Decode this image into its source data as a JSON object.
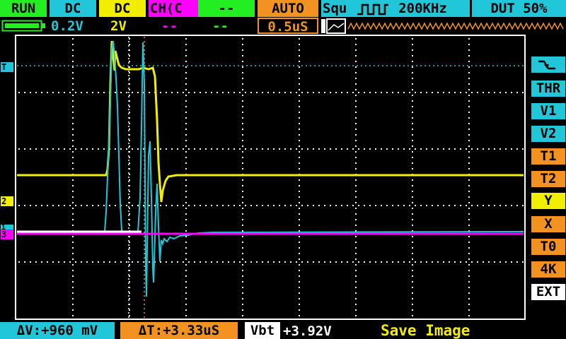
{
  "top_bar": {
    "run_state": "RUN",
    "ch1_coupling": "DC",
    "ch2_coupling": "DC",
    "ch_mode": "CH(C",
    "ch4_coupling": "--",
    "trigger_mode": "AUTO",
    "waveform": "Squ",
    "frequency": "200KHz",
    "duty": "DUT 50%"
  },
  "second_bar": {
    "ch1_scale": "0.2V",
    "ch2_scale": "2V",
    "ch3_scale": "--",
    "ch4_scale": "--",
    "timebase": "0.5uS"
  },
  "markers": {
    "trigger_level": "T",
    "ch2": "2",
    "ch1": "1",
    "ch3": "3"
  },
  "right_menu": [
    "THR",
    "V1",
    "V2",
    "T1",
    "T2",
    "Y",
    "X",
    "T0",
    "4K",
    "EXT"
  ],
  "bottom_bar": {
    "delta_v": "ΔV:+960 mV",
    "delta_t": "ΔT:+3.33uS",
    "vbat_label": "Vbt",
    "vbat_value": "+3.92V",
    "action": "Save Image"
  },
  "colors": {
    "ch1": "#22c6d9",
    "ch2": "#f2ee00",
    "ch3": "#ff00ff",
    "ref": "#ffffff",
    "orange": "#f29220",
    "green": "#22ee22",
    "cyan": "#22c6d9"
  },
  "icons": {
    "battery": "battery-icon",
    "trigger_edge": "falling-edge-trigger-icon",
    "square_wave": "square-wave-icon",
    "signal_preview": "signal-preview-icon"
  }
}
